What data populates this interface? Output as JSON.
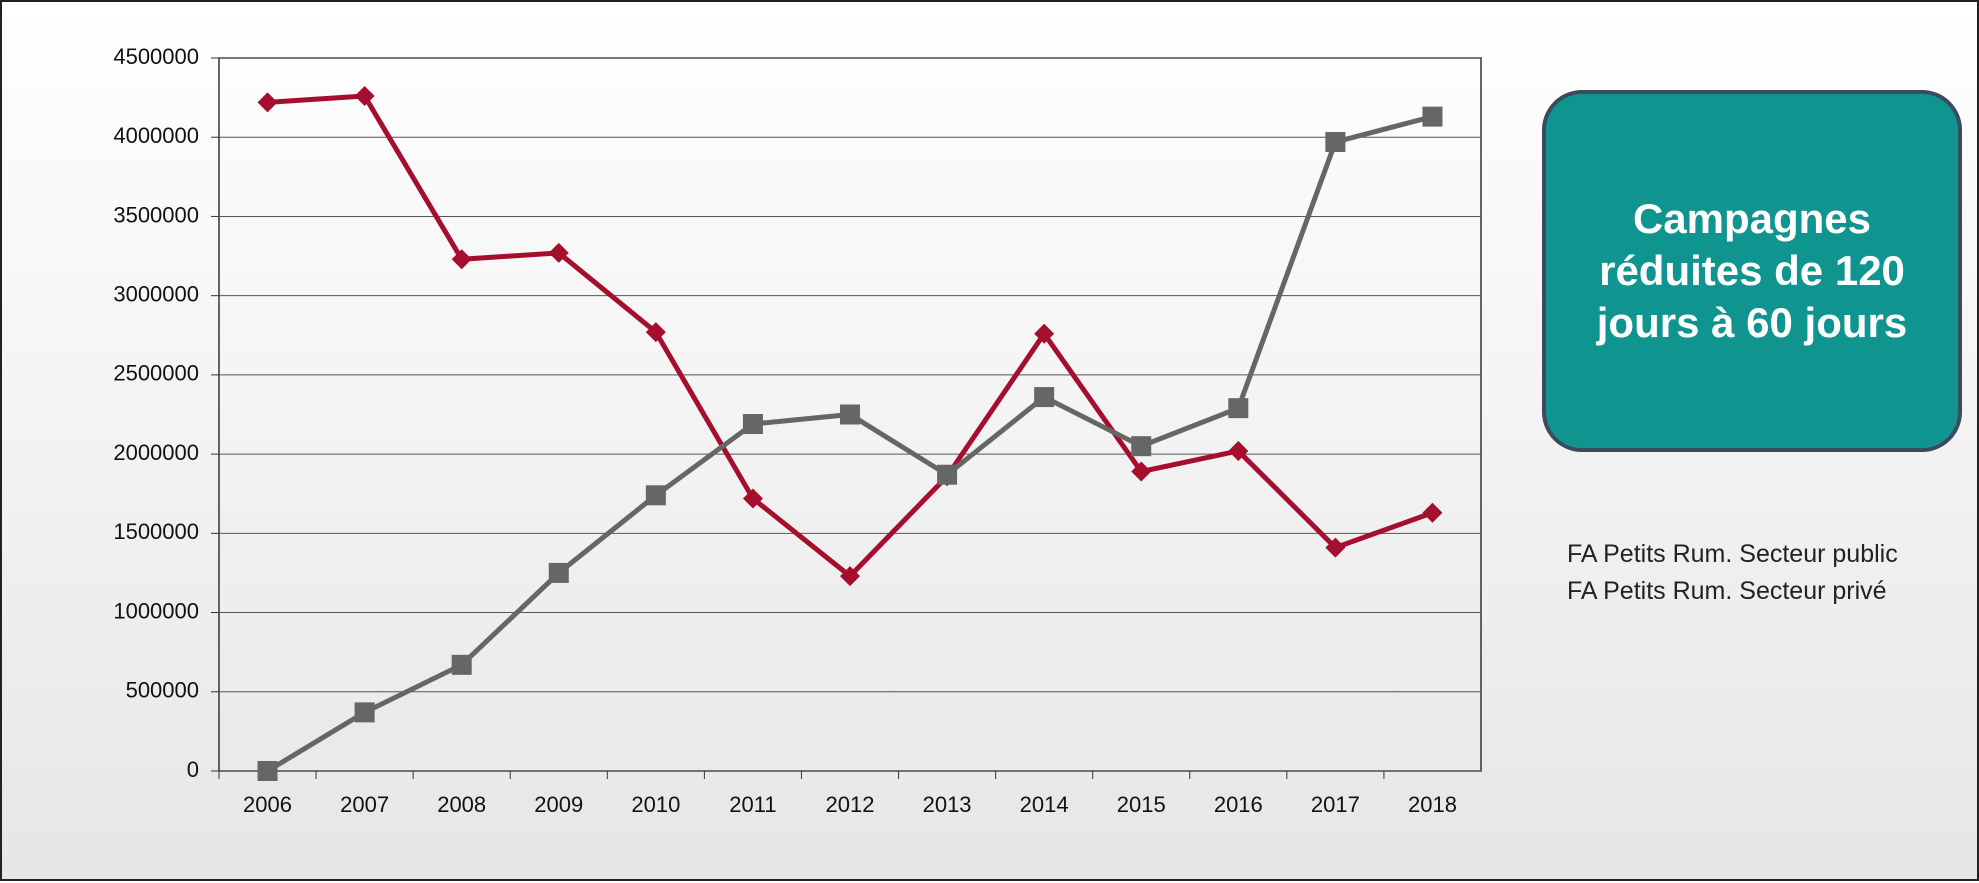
{
  "chart_data": {
    "type": "line",
    "annotation": "Campagnes réduites de 120 jours à 60 jours",
    "x": [
      2006,
      2007,
      2008,
      2009,
      2010,
      2011,
      2012,
      2013,
      2014,
      2015,
      2016,
      2017,
      2018
    ],
    "series": [
      {
        "name": "FA Petits Rum. Secteur public",
        "color": "#a50f2d",
        "marker": "diamond",
        "values": [
          4220000,
          4260000,
          3230000,
          3270000,
          2770000,
          1720000,
          1230000,
          1860000,
          2760000,
          1890000,
          2020000,
          1410000,
          1630000
        ]
      },
      {
        "name": "FA Petits Rum. Secteur privé",
        "color": "#666666",
        "marker": "square",
        "values": [
          0,
          370000,
          670000,
          1250000,
          1740000,
          2190000,
          2250000,
          1870000,
          2360000,
          2050000,
          2290000,
          3970000,
          4130000
        ]
      }
    ],
    "ylim": [
      0,
      4500000
    ],
    "yticks": [
      0,
      500000,
      1000000,
      1500000,
      2000000,
      2500000,
      3000000,
      3500000,
      4000000,
      4500000
    ],
    "grid": true
  }
}
